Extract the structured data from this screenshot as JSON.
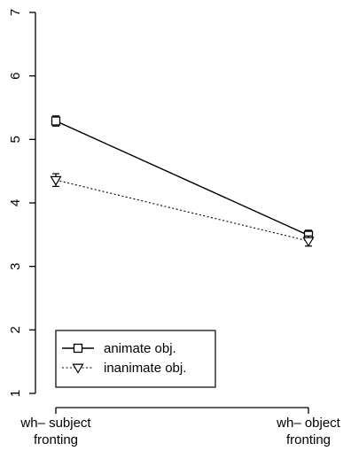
{
  "chart_data": {
    "type": "line",
    "categories": [
      "wh– subject\nfronting",
      "wh– object\nfronting"
    ],
    "yticks": [
      1,
      2,
      3,
      4,
      5,
      6,
      7
    ],
    "ylim": [
      1,
      7
    ],
    "xlabel": "",
    "ylabel": "",
    "title": "",
    "grid": false,
    "legend_position": "bottom-left",
    "series": [
      {
        "name": "animate obj.",
        "marker": "square",
        "line_style": "solid",
        "color": "#000000",
        "values": [
          5.29,
          3.49
        ],
        "error": [
          0.08,
          0.08
        ]
      },
      {
        "name": "inanimate obj.",
        "marker": "triangle-down",
        "line_style": "dotted",
        "color": "#000000",
        "values": [
          4.36,
          3.4
        ],
        "error": [
          0.1,
          0.08
        ]
      }
    ]
  }
}
